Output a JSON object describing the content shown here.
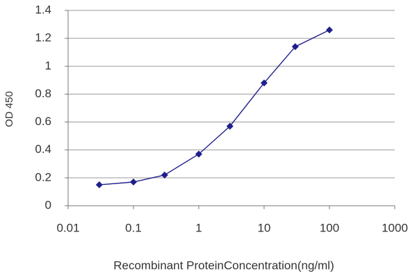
{
  "chart_data": {
    "type": "line",
    "x_label": "Recombinant ProteinConcentration(ng/ml)",
    "y_label": "OD 450",
    "series": [
      {
        "color": "#1f1f8c",
        "x": [
          0.03,
          0.1,
          0.3,
          1,
          3,
          10,
          30,
          100
        ],
        "values": [
          0.15,
          0.17,
          0.22,
          0.37,
          0.57,
          0.88,
          1.14,
          1.26
        ]
      }
    ],
    "xscale": "log",
    "xlim": [
      0.01,
      1000
    ],
    "xticks": [
      0.01,
      0.1,
      1,
      10,
      100,
      1000
    ],
    "ylim": [
      0,
      1.4
    ],
    "yticks": [
      0,
      0.2,
      0.4,
      0.6,
      0.8,
      1,
      1.2,
      1.4
    ],
    "grid": true
  }
}
